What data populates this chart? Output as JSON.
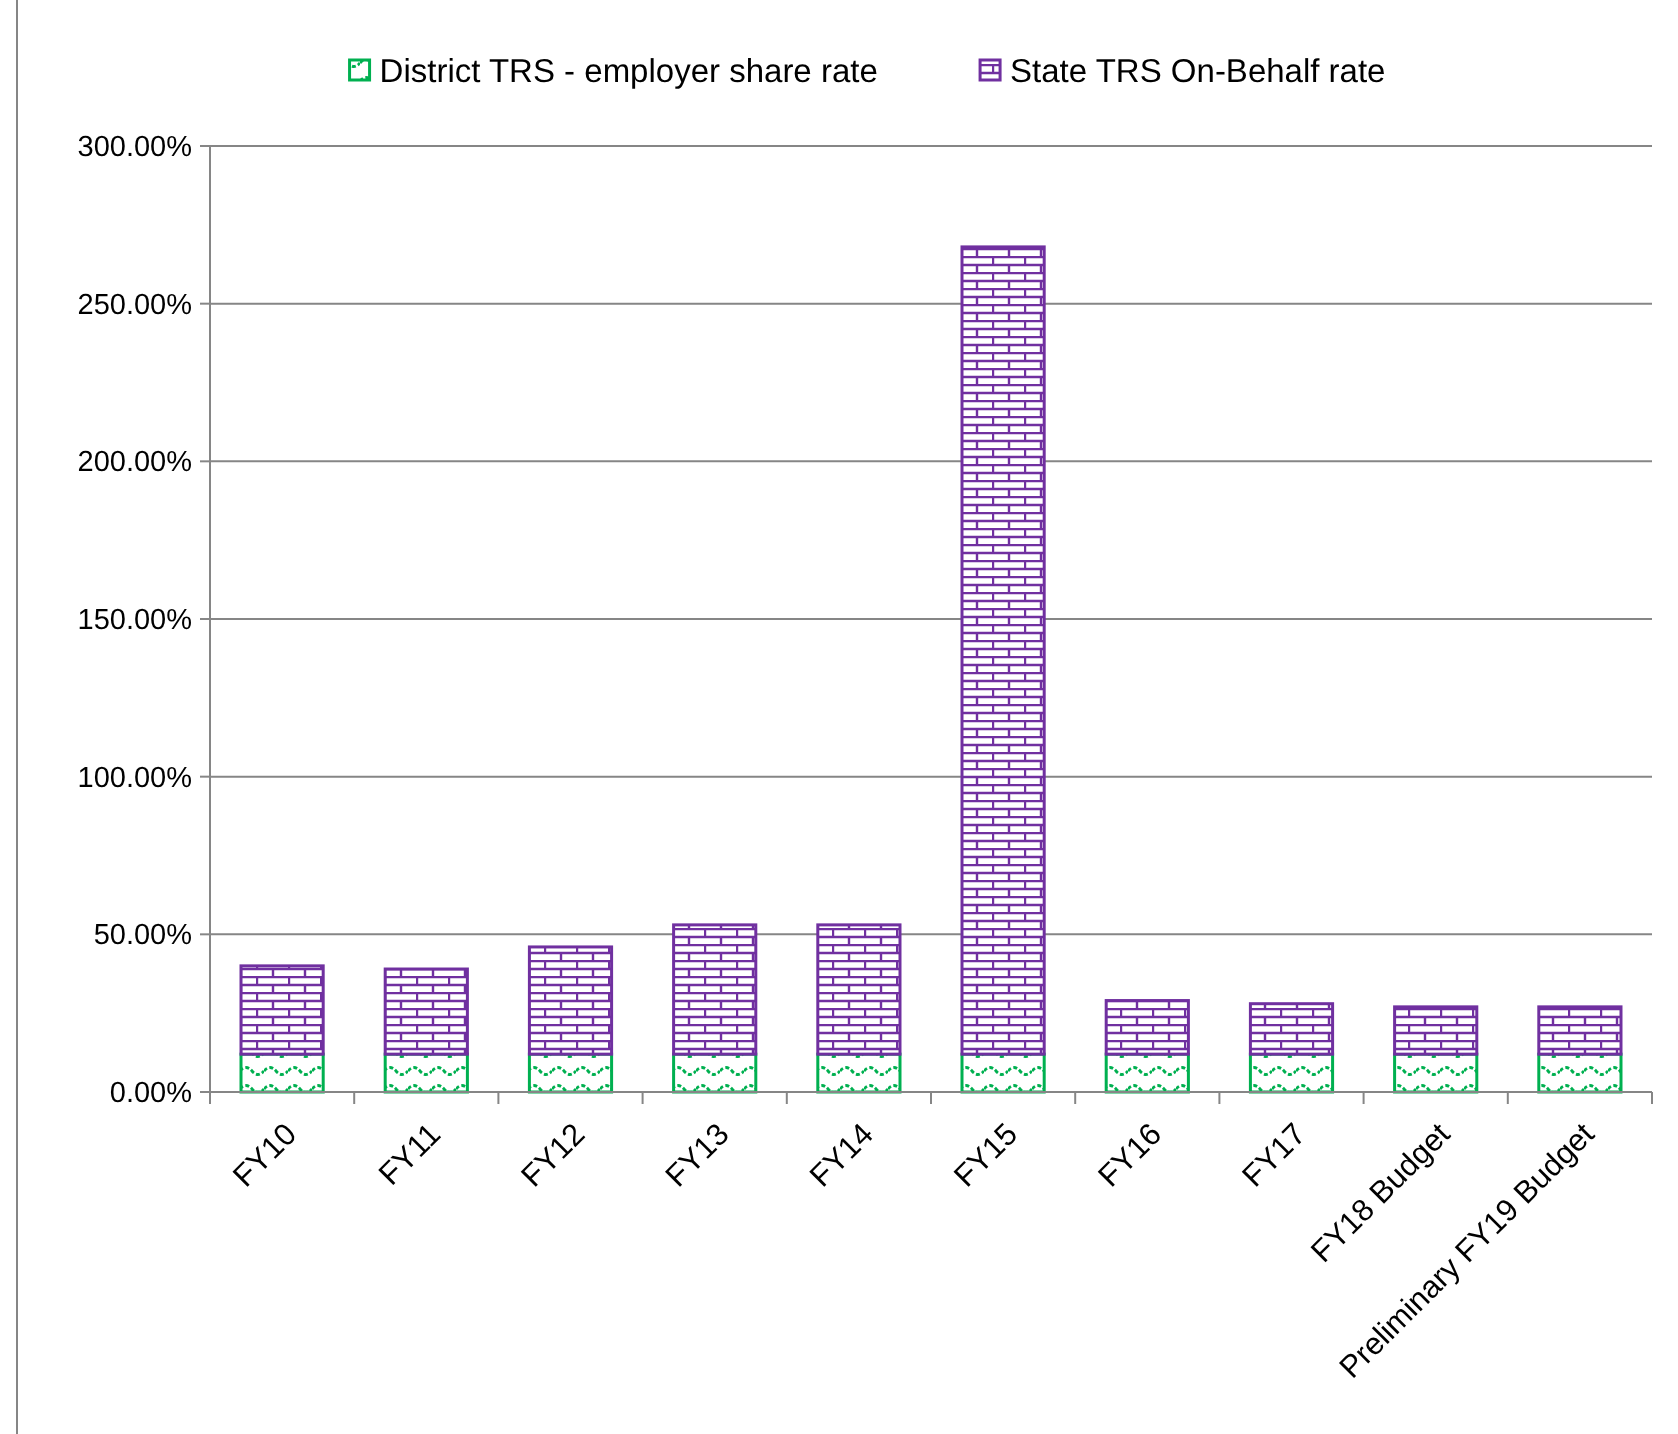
{
  "chart_data": {
    "type": "bar",
    "stacked": true,
    "categories": [
      "FY10",
      "FY11",
      "FY12",
      "FY13",
      "FY14",
      "FY15",
      "FY16",
      "FY17",
      "FY18 Budget",
      "Preliminary FY19 Budget"
    ],
    "series": [
      {
        "name": "District TRS - employer share rate",
        "color": "#00b050",
        "values": [
          12,
          12,
          12,
          12,
          12,
          12,
          12,
          12,
          12,
          12
        ]
      },
      {
        "name": "State TRS On-Behalf rate",
        "color": "#7030a0",
        "values": [
          28,
          27,
          34,
          41,
          41,
          256,
          17,
          16,
          15,
          15
        ]
      }
    ],
    "ylim": [
      0,
      300
    ],
    "yticks": [
      {
        "value": 0,
        "label": "0.00%"
      },
      {
        "value": 50,
        "label": "50.00%"
      },
      {
        "value": 100,
        "label": "100.00%"
      },
      {
        "value": 150,
        "label": "150.00%"
      },
      {
        "value": 200,
        "label": "200.00%"
      },
      {
        "value": 250,
        "label": "250.00%"
      },
      {
        "value": 300,
        "label": "300.00%"
      }
    ],
    "grid": "y",
    "legend": "top"
  }
}
